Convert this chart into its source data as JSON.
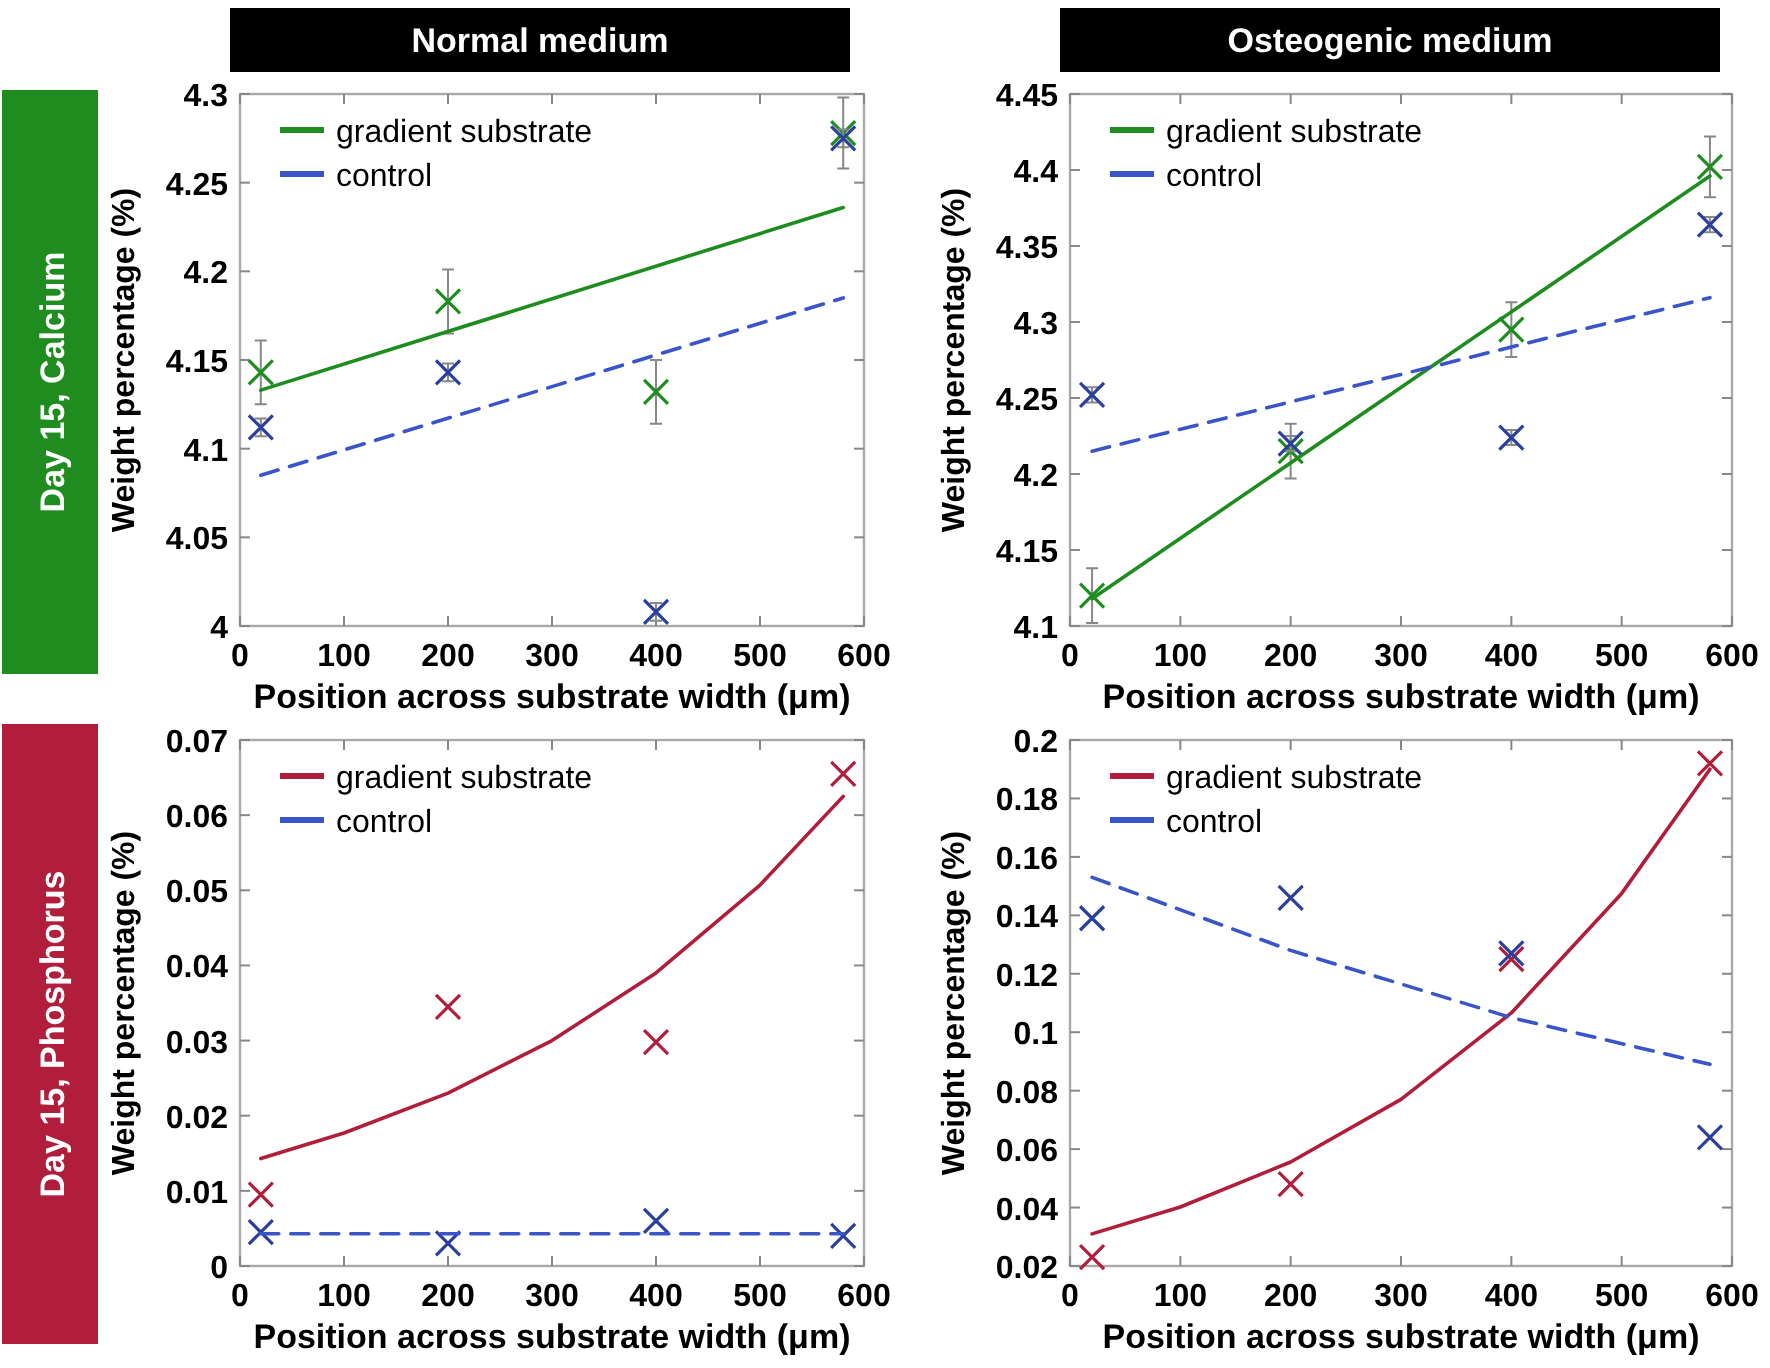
{
  "chart_data": [
    {
      "type": "scatter",
      "title": "Normal medium",
      "annotations": [
        "Day 15, Calcium"
      ],
      "xlabel": "Position across substrate width (μm)",
      "ylabel": "Weight percentage (%)",
      "xlim": [
        0,
        600
      ],
      "xticks": [
        0,
        100,
        200,
        300,
        400,
        500,
        600
      ],
      "ylim": [
        4,
        4.3
      ],
      "yticks": [
        4,
        4.05,
        4.1,
        4.15,
        4.2,
        4.25,
        4.3
      ],
      "legend": "top left",
      "x": [
        20,
        200,
        400,
        580
      ],
      "series": [
        {
          "type": "scatter",
          "color": "#1e8c1e",
          "values": [
            4.143,
            4.183,
            4.132,
            4.278
          ],
          "errors": [
            0.018,
            0.018,
            0.018,
            0.02
          ],
          "marker": "cross"
        },
        {
          "type": "scatter",
          "color": "#2b3f9c",
          "values": [
            4.112,
            4.143,
            4.008,
            4.275
          ],
          "errors": [
            0.005,
            0.005,
            0.005,
            0.005
          ],
          "marker": "cross"
        },
        {
          "type": "line",
          "name": "gradient substrate",
          "color": "#1e8c1e",
          "x": [
            20,
            580
          ],
          "values": [
            4.133,
            4.236
          ],
          "line_style": "solid",
          "marker": "none"
        },
        {
          "type": "line",
          "name": "control",
          "color": "#3a55c8",
          "x": [
            20,
            580
          ],
          "values": [
            4.085,
            4.185
          ],
          "line_style": "dashed",
          "marker": "none"
        }
      ]
    },
    {
      "type": "scatter",
      "title": "Osteogenic medium",
      "xlabel": "Position across substrate width (μm)",
      "ylabel": "Weight percentage (%)",
      "xlim": [
        0,
        600
      ],
      "xticks": [
        0,
        100,
        200,
        300,
        400,
        500,
        600
      ],
      "ylim": [
        4.1,
        4.45
      ],
      "yticks": [
        4.1,
        4.15,
        4.2,
        4.25,
        4.3,
        4.35,
        4.4,
        4.45
      ],
      "legend": "top left",
      "x": [
        20,
        200,
        400,
        580
      ],
      "series": [
        {
          "type": "scatter",
          "color": "#1e8c1e",
          "values": [
            4.12,
            4.215,
            4.295,
            4.402
          ],
          "errors": [
            0.018,
            0.018,
            0.018,
            0.02
          ],
          "marker": "cross"
        },
        {
          "type": "scatter",
          "color": "#2b3f9c",
          "values": [
            4.252,
            4.22,
            4.224,
            4.364
          ],
          "errors": [
            0.005,
            0.005,
            0.005,
            0.005
          ],
          "marker": "cross"
        },
        {
          "type": "line",
          "name": "gradient substrate",
          "color": "#1e8c1e",
          "x": [
            20,
            580
          ],
          "values": [
            4.118,
            4.396
          ],
          "line_style": "solid",
          "marker": "none"
        },
        {
          "type": "line",
          "name": "control",
          "color": "#3a55c8",
          "x": [
            20,
            580
          ],
          "values": [
            4.215,
            4.316
          ],
          "line_style": "dashed",
          "marker": "none"
        }
      ]
    },
    {
      "type": "scatter",
      "annotations": [
        "Day 15, Phosphorus"
      ],
      "xlabel": "Position across substrate width (μm)",
      "ylabel": "Weight percentage (%)",
      "xlim": [
        0,
        600
      ],
      "xticks": [
        0,
        100,
        200,
        300,
        400,
        500,
        600
      ],
      "ylim": [
        0,
        0.07
      ],
      "yticks": [
        0,
        0.01,
        0.02,
        0.03,
        0.04,
        0.05,
        0.06,
        0.07
      ],
      "legend": "top left",
      "x": [
        20,
        200,
        400,
        580
      ],
      "series": [
        {
          "type": "scatter",
          "color": "#b01e3c",
          "values": [
            0.0095,
            0.0345,
            0.0298,
            0.0655
          ],
          "marker": "cross"
        },
        {
          "type": "scatter",
          "color": "#2b3f9c",
          "values": [
            0.0045,
            0.003,
            0.006,
            0.004
          ],
          "marker": "cross"
        },
        {
          "type": "line",
          "name": "gradient substrate",
          "color": "#b01e3c",
          "x": [
            20,
            100,
            200,
            300,
            400,
            500,
            580
          ],
          "values": [
            0.0143,
            0.0177,
            0.023,
            0.03,
            0.039,
            0.0507,
            0.0625
          ],
          "line_style": "solid",
          "marker": "none"
        },
        {
          "type": "line",
          "name": "control",
          "color": "#3a55c8",
          "x": [
            20,
            580
          ],
          "values": [
            0.0043,
            0.0043
          ],
          "line_style": "dashed",
          "marker": "none"
        }
      ]
    },
    {
      "type": "scatter",
      "xlabel": "Position across substrate width (μm)",
      "ylabel": "Weight percentage (%)",
      "xlim": [
        0,
        600
      ],
      "xticks": [
        0,
        100,
        200,
        300,
        400,
        500,
        600
      ],
      "ylim": [
        0.02,
        0.2
      ],
      "yticks": [
        0.02,
        0.04,
        0.06,
        0.08,
        0.1,
        0.12,
        0.14,
        0.16,
        0.18,
        0.2
      ],
      "legend": "top left",
      "x": [
        20,
        200,
        400,
        580
      ],
      "series": [
        {
          "type": "scatter",
          "color": "#b01e3c",
          "values": [
            0.023,
            0.048,
            0.125,
            0.192
          ],
          "marker": "cross"
        },
        {
          "type": "scatter",
          "color": "#2b3f9c",
          "values": [
            0.139,
            0.146,
            0.127,
            0.064
          ],
          "marker": "cross"
        },
        {
          "type": "line",
          "name": "gradient substrate",
          "color": "#b01e3c",
          "x": [
            20,
            100,
            200,
            300,
            400,
            500,
            580
          ],
          "values": [
            0.031,
            0.0402,
            0.0556,
            0.077,
            0.1066,
            0.1475,
            0.19
          ],
          "line_style": "solid",
          "marker": "none"
        },
        {
          "type": "line",
          "name": "control",
          "color": "#3a55c8",
          "x": [
            20,
            200,
            400,
            580
          ],
          "values": [
            0.153,
            0.128,
            0.105,
            0.089
          ],
          "line_style": "dashed",
          "marker": "none"
        }
      ]
    }
  ]
}
